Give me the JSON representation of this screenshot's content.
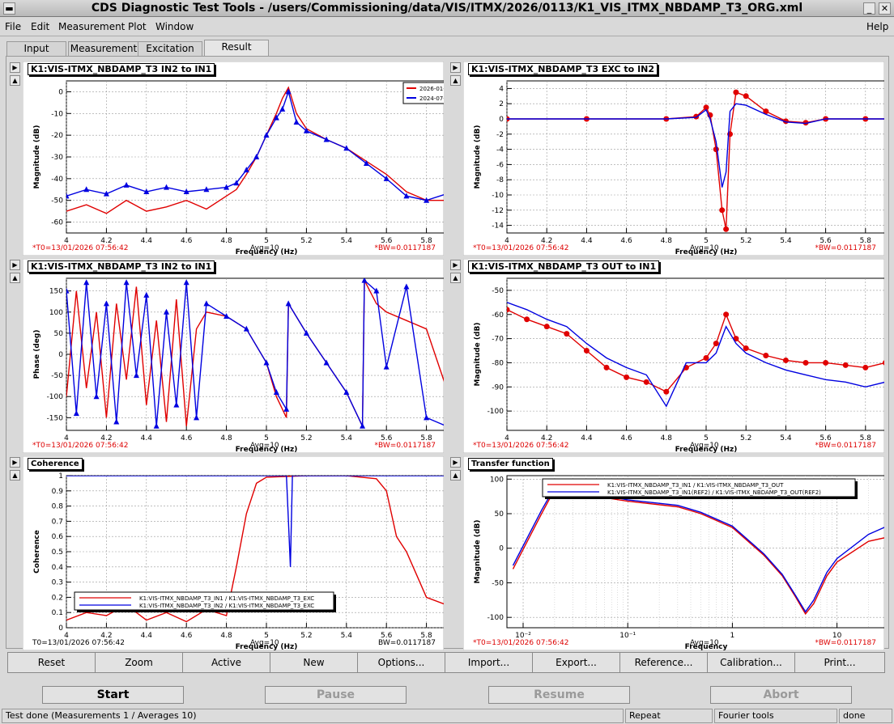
{
  "window": {
    "title": "CDS Diagnostic Test Tools - /users/Commissioning/data/VIS/ITMX/2026/0113/K1_VIS_ITMX_NBDAMP_T3_ORG.xml",
    "minimize_glyph": "_",
    "close_glyph": "✕"
  },
  "menu": {
    "file": "File",
    "edit": "Edit",
    "measurement": "Measurement",
    "plot": "Plot",
    "window": "Window",
    "help": "Help"
  },
  "tabs": [
    "Input",
    "Measurement",
    "Excitation",
    "Result"
  ],
  "colors": {
    "red": "#e00000",
    "blue": "#0000e0"
  },
  "panels": {
    "mag_in2_in1": {
      "title": "K1:VIS-ITMX_NBDAMP_T3 IN2 to IN1",
      "xlabel": "Frequency (Hz)",
      "ylabel": "Magnitude (dB)",
      "xticks": [
        "4",
        "4.2",
        "4.4",
        "4.6",
        "4.8",
        "5",
        "5.2",
        "5.4",
        "5.6",
        "5.8",
        "6"
      ],
      "yticks": [
        "0",
        "-10",
        "-20",
        "-30",
        "-40",
        "-50",
        "-60"
      ],
      "legend": [
        "2026-01-13",
        "2024-07-30"
      ],
      "t0": "*T0=13/01/2026 07:56:42",
      "avg": "Avg=10",
      "bw": "*BW=0.0117187"
    },
    "mag_exc_in2": {
      "title": "K1:VIS-ITMX_NBDAMP_T3 EXC to IN2",
      "xlabel": "Frequency (Hz)",
      "ylabel": "Magnitude (dB)",
      "xticks": [
        "4",
        "4.2",
        "4.4",
        "4.6",
        "4.8",
        "5",
        "5.2",
        "5.4",
        "5.6",
        "5.8",
        "6"
      ],
      "yticks": [
        "4",
        "2",
        "0",
        "-2",
        "-4",
        "-6",
        "-8",
        "-10",
        "-12",
        "-14"
      ],
      "t0": "*T0=13/01/2026 07:56:42",
      "avg": "Avg=10",
      "bw": "*BW=0.0117187"
    },
    "phase_in2_in1": {
      "title": "K1:VIS-ITMX_NBDAMP_T3 IN2 to IN1",
      "xlabel": "Frequency (Hz)",
      "ylabel": "Phase (deg)",
      "xticks": [
        "4",
        "4.2",
        "4.4",
        "4.6",
        "4.8",
        "5",
        "5.2",
        "5.4",
        "5.6",
        "5.8",
        "6"
      ],
      "yticks": [
        "150",
        "100",
        "50",
        "0",
        "-50",
        "-100",
        "-150"
      ],
      "t0": "*T0=13/01/2026 07:56:42",
      "avg": "Avg=10",
      "bw": "*BW=0.0117187"
    },
    "mag_out_in1": {
      "title": "K1:VIS-ITMX_NBDAMP_T3 OUT to IN1",
      "xlabel": "Frequency (Hz)",
      "ylabel": "Magnitude (dB)",
      "xticks": [
        "4",
        "4.2",
        "4.4",
        "4.6",
        "4.8",
        "5",
        "5.2",
        "5.4",
        "5.6",
        "5.8",
        "6"
      ],
      "yticks": [
        "-50",
        "-60",
        "-70",
        "-80",
        "-90",
        "-100"
      ],
      "t0": "*T0=13/01/2026 07:56:42",
      "avg": "Avg=10",
      "bw": "*BW=0.0117187"
    },
    "coherence": {
      "title": "Coherence",
      "xlabel": "Frequency (Hz)",
      "ylabel": "Coherence",
      "xticks": [
        "4",
        "4.2",
        "4.4",
        "4.6",
        "4.8",
        "5",
        "5.2",
        "5.4",
        "5.6",
        "5.8",
        "6"
      ],
      "yticks": [
        "1",
        "0.9",
        "0.8",
        "0.7",
        "0.6",
        "0.5",
        "0.4",
        "0.3",
        "0.2",
        "0.1",
        "0"
      ],
      "legend": [
        "K1:VIS-ITMX_NBDAMP_T3_IN1 / K1:VIS-ITMX_NBDAMP_T3_EXC",
        "K1:VIS-ITMX_NBDAMP_T3_IN2 / K1:VIS-ITMX_NBDAMP_T3_EXC"
      ],
      "t0": "T0=13/01/2026 07:56:42",
      "avg": "Avg=10",
      "bw": "BW=0.0117187"
    },
    "transfer": {
      "title": "Transfer function",
      "xlabel": "Frequency",
      "ylabel": "Magnitude (dB)",
      "xticks": [
        "10⁻²",
        "10⁻¹",
        "1",
        "10"
      ],
      "yticks": [
        "100",
        "50",
        "0",
        "-50",
        "-100"
      ],
      "legend": [
        "K1:VIS-ITMX_NBDAMP_T3_IN1 / K1:VIS-ITMX_NBDAMP_T3_OUT",
        "K1:VIS-ITMX_NBDAMP_T3_IN1(REF2) / K1:VIS-ITMX_NBDAMP_T3_OUT(REF2)"
      ],
      "t0": "*T0=13/01/2026 07:56:42",
      "avg": "Avg=10",
      "bw": "*BW=0.0117187"
    }
  },
  "chart_data": [
    {
      "type": "line",
      "panel": "mag_in2_in1",
      "title": "K1:VIS-ITMX_NBDAMP_T3 IN2 to IN1",
      "xlabel": "Frequency (Hz)",
      "ylabel": "Magnitude (dB)",
      "xlim": [
        4,
        6
      ],
      "ylim": [
        -65,
        5
      ],
      "series": [
        {
          "name": "2026-01-13",
          "color": "#e00000",
          "x": [
            4,
            4.1,
            4.2,
            4.3,
            4.4,
            4.5,
            4.6,
            4.7,
            4.8,
            4.85,
            4.9,
            4.95,
            5.0,
            5.05,
            5.08,
            5.11,
            5.15,
            5.2,
            5.3,
            5.4,
            5.5,
            5.6,
            5.7,
            5.8,
            5.9,
            6
          ],
          "y": [
            -55,
            -52,
            -56,
            -50,
            -55,
            -53,
            -50,
            -54,
            -48,
            -45,
            -38,
            -30,
            -20,
            -10,
            -3,
            2,
            -10,
            -17,
            -22,
            -26,
            -32,
            -38,
            -46,
            -50,
            -50,
            -53
          ]
        },
        {
          "name": "2024-07-30",
          "color": "#0000e0",
          "x": [
            4,
            4.1,
            4.2,
            4.3,
            4.4,
            4.5,
            4.6,
            4.7,
            4.8,
            4.85,
            4.9,
            4.95,
            5.0,
            5.05,
            5.08,
            5.11,
            5.15,
            5.2,
            5.3,
            5.4,
            5.5,
            5.6,
            5.7,
            5.8,
            5.9,
            6
          ],
          "y": [
            -48,
            -45,
            -47,
            -43,
            -46,
            -44,
            -46,
            -45,
            -44,
            -42,
            -36,
            -30,
            -20,
            -12,
            -8,
            0,
            -14,
            -18,
            -22,
            -26,
            -33,
            -40,
            -48,
            -50,
            -47,
            -49
          ]
        }
      ]
    },
    {
      "type": "line",
      "panel": "mag_exc_in2",
      "title": "K1:VIS-ITMX_NBDAMP_T3 EXC to IN2",
      "xlabel": "Frequency (Hz)",
      "ylabel": "Magnitude (dB)",
      "xlim": [
        4,
        6
      ],
      "ylim": [
        -15,
        5
      ],
      "series": [
        {
          "name": "",
          "color": "#e00000",
          "x": [
            4,
            4.4,
            4.8,
            4.95,
            5.0,
            5.02,
            5.05,
            5.08,
            5.1,
            5.12,
            5.15,
            5.2,
            5.3,
            5.4,
            5.5,
            5.6,
            5.8,
            6
          ],
          "y": [
            0,
            0,
            0,
            0.3,
            1.5,
            0.5,
            -4,
            -12,
            -14.5,
            -2,
            3.5,
            3,
            1,
            -0.3,
            -0.5,
            0,
            0,
            0
          ]
        },
        {
          "name": "",
          "color": "#0000e0",
          "x": [
            4,
            4.4,
            4.8,
            4.95,
            5.0,
            5.02,
            5.05,
            5.08,
            5.1,
            5.12,
            5.15,
            5.2,
            5.3,
            5.4,
            5.5,
            5.6,
            5.8,
            6
          ],
          "y": [
            0,
            0,
            0,
            0.2,
            1.2,
            0,
            -3,
            -9,
            -7,
            1,
            2,
            1.8,
            0.6,
            -0.4,
            -0.6,
            0,
            0,
            0
          ]
        }
      ]
    },
    {
      "type": "line",
      "panel": "phase_in2_in1",
      "title": "K1:VIS-ITMX_NBDAMP_T3 IN2 to IN1",
      "xlabel": "Frequency (Hz)",
      "ylabel": "Phase (deg)",
      "xlim": [
        4,
        6
      ],
      "ylim": [
        -180,
        180
      ],
      "series": [
        {
          "name": "",
          "color": "#e00000",
          "x": [
            4,
            4.05,
            4.1,
            4.15,
            4.2,
            4.25,
            4.3,
            4.35,
            4.4,
            4.45,
            4.5,
            4.55,
            4.6,
            4.65,
            4.7,
            4.8,
            4.9,
            5.0,
            5.05,
            5.1,
            5.11,
            5.2,
            5.3,
            5.4,
            5.48,
            5.49,
            5.55,
            5.6,
            5.7,
            5.8,
            5.9,
            6
          ],
          "y": [
            -100,
            150,
            -80,
            100,
            -150,
            120,
            -60,
            160,
            -120,
            80,
            -160,
            130,
            -170,
            60,
            100,
            90,
            60,
            -20,
            -100,
            -150,
            120,
            50,
            -20,
            -90,
            -170,
            175,
            120,
            100,
            80,
            60,
            -80,
            20
          ]
        },
        {
          "name": "",
          "color": "#0000e0",
          "x": [
            4,
            4.05,
            4.1,
            4.15,
            4.2,
            4.25,
            4.3,
            4.35,
            4.4,
            4.45,
            4.5,
            4.55,
            4.6,
            4.65,
            4.7,
            4.8,
            4.9,
            5.0,
            5.05,
            5.1,
            5.11,
            5.2,
            5.3,
            5.4,
            5.48,
            5.49,
            5.55,
            5.6,
            5.7,
            5.8,
            5.9,
            6
          ],
          "y": [
            150,
            -140,
            170,
            -100,
            120,
            -160,
            170,
            -50,
            140,
            -170,
            100,
            -120,
            170,
            -150,
            120,
            90,
            60,
            -20,
            -90,
            -130,
            120,
            50,
            -20,
            -90,
            -170,
            175,
            150,
            -30,
            160,
            -150,
            -170,
            100
          ]
        }
      ]
    },
    {
      "type": "line",
      "panel": "mag_out_in1",
      "title": "K1:VIS-ITMX_NBDAMP_T3 OUT to IN1",
      "xlabel": "Frequency (Hz)",
      "ylabel": "Magnitude (dB)",
      "xlim": [
        4,
        6
      ],
      "ylim": [
        -108,
        -45
      ],
      "series": [
        {
          "name": "",
          "color": "#e00000",
          "x": [
            4,
            4.1,
            4.2,
            4.3,
            4.4,
            4.5,
            4.6,
            4.7,
            4.8,
            4.9,
            5.0,
            5.05,
            5.1,
            5.15,
            5.2,
            5.3,
            5.4,
            5.5,
            5.6,
            5.7,
            5.8,
            5.9,
            6
          ],
          "y": [
            -58,
            -62,
            -65,
            -68,
            -75,
            -82,
            -86,
            -88,
            -92,
            -82,
            -78,
            -72,
            -60,
            -70,
            -74,
            -77,
            -79,
            -80,
            -80,
            -81,
            -82,
            -80,
            -75
          ]
        },
        {
          "name": "",
          "color": "#0000e0",
          "x": [
            4,
            4.1,
            4.2,
            4.3,
            4.4,
            4.5,
            4.6,
            4.7,
            4.8,
            4.9,
            5.0,
            5.05,
            5.1,
            5.15,
            5.2,
            5.3,
            5.4,
            5.5,
            5.6,
            5.7,
            5.8,
            5.9,
            6
          ],
          "y": [
            -55,
            -58,
            -62,
            -65,
            -72,
            -78,
            -82,
            -85,
            -98,
            -80,
            -80,
            -76,
            -65,
            -72,
            -76,
            -80,
            -83,
            -85,
            -87,
            -88,
            -90,
            -88,
            -85
          ]
        }
      ]
    },
    {
      "type": "line",
      "panel": "coherence",
      "title": "Coherence",
      "xlabel": "Frequency (Hz)",
      "ylabel": "Coherence",
      "xlim": [
        4,
        6
      ],
      "ylim": [
        0,
        1
      ],
      "series": [
        {
          "name": "K1:VIS-ITMX_NBDAMP_T3_IN1 / K1:VIS-ITMX_NBDAMP_T3_EXC",
          "color": "#e00000",
          "x": [
            4,
            4.1,
            4.2,
            4.3,
            4.4,
            4.5,
            4.6,
            4.7,
            4.8,
            4.85,
            4.9,
            4.95,
            5.0,
            5.2,
            5.4,
            5.55,
            5.6,
            5.65,
            5.7,
            5.75,
            5.8,
            5.9,
            6
          ],
          "y": [
            0.05,
            0.1,
            0.08,
            0.15,
            0.05,
            0.1,
            0.04,
            0.12,
            0.08,
            0.4,
            0.75,
            0.95,
            0.99,
            1.0,
            1.0,
            0.98,
            0.9,
            0.6,
            0.5,
            0.35,
            0.2,
            0.15,
            0.1
          ]
        },
        {
          "name": "K1:VIS-ITMX_NBDAMP_T3_IN2 / K1:VIS-ITMX_NBDAMP_T3_EXC",
          "color": "#0000e0",
          "x": [
            4,
            5.1,
            5.11,
            5.12,
            5.13,
            6
          ],
          "y": [
            1.0,
            1.0,
            0.7,
            0.4,
            1.0,
            1.0
          ]
        }
      ]
    },
    {
      "type": "line",
      "panel": "transfer",
      "title": "Transfer function",
      "xlabel": "Frequency",
      "ylabel": "Magnitude (dB)",
      "xscale": "log",
      "xlim": [
        0.007,
        45
      ],
      "ylim": [
        -115,
        105
      ],
      "series": [
        {
          "name": "K1:VIS-ITMX_NBDAMP_T3_IN1 / K1:VIS-ITMX_NBDAMP_T3_OUT",
          "color": "#e00000",
          "x": [
            0.008,
            0.015,
            0.02,
            0.05,
            0.1,
            0.3,
            0.5,
            1,
            2,
            3,
            4,
            5,
            6,
            8,
            10,
            20,
            40
          ],
          "y": [
            -30,
            50,
            85,
            75,
            68,
            60,
            50,
            30,
            -10,
            -40,
            -70,
            -95,
            -80,
            -40,
            -20,
            10,
            20
          ]
        },
        {
          "name": "K1:VIS-ITMX_NBDAMP_T3_IN1(REF2) / K1:VIS-ITMX_NBDAMP_T3_OUT(REF2)",
          "color": "#0000e0",
          "x": [
            0.008,
            0.015,
            0.02,
            0.05,
            0.1,
            0.3,
            0.5,
            1,
            2,
            3,
            4,
            5,
            6,
            8,
            10,
            20,
            40
          ],
          "y": [
            -25,
            55,
            88,
            78,
            70,
            62,
            52,
            32,
            -8,
            -38,
            -68,
            -92,
            -75,
            -35,
            -15,
            20,
            40
          ]
        }
      ]
    }
  ],
  "toolbar": [
    "Reset",
    "Zoom",
    "Active",
    "New",
    "Options...",
    "Import...",
    "Export...",
    "Reference...",
    "Calibration...",
    "Print..."
  ],
  "controls": {
    "start": "Start",
    "pause": "Pause",
    "resume": "Resume",
    "abort": "Abort"
  },
  "status": {
    "message": "Test done (Measurements 1 / Averages 10)",
    "mode": "Repeat",
    "tool": "Fourier tools",
    "state": "done"
  },
  "pad_glyphs": {
    "right": "▶",
    "up": "▲"
  }
}
